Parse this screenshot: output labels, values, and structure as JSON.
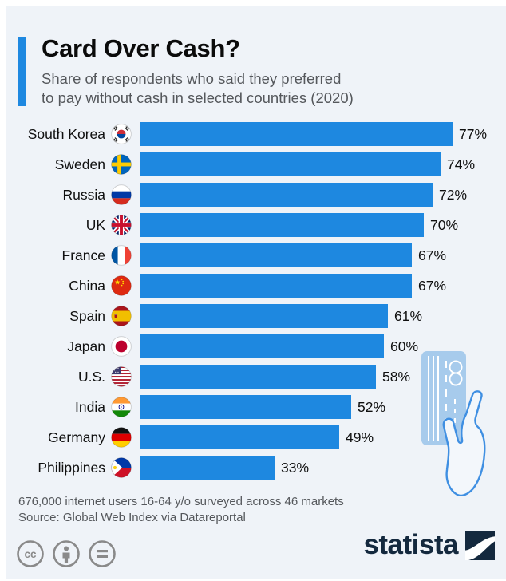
{
  "header": {
    "title": "Card Over Cash?",
    "subtitle_line1": "Share of respondents who said they preferred",
    "subtitle_line2": "to pay without cash in selected countries (2020)",
    "accent_color": "#1e88e0"
  },
  "chart_data": {
    "type": "bar",
    "orientation": "horizontal",
    "title": "Card Over Cash?",
    "subtitle": "Share of respondents who said they preferred to pay without cash in selected countries (2020)",
    "categories": [
      "South Korea",
      "Sweden",
      "Russia",
      "UK",
      "France",
      "China",
      "Spain",
      "Japan",
      "U.S.",
      "India",
      "Germany",
      "Philippines"
    ],
    "values": [
      77,
      74,
      72,
      70,
      67,
      67,
      61,
      60,
      58,
      52,
      49,
      33
    ],
    "value_suffix": "%",
    "xlim": [
      0,
      80
    ],
    "grid": false,
    "bar_color": "#1e88e0",
    "rows": [
      {
        "country": "South Korea",
        "value": 77,
        "value_label": "77%",
        "flag_code": "kr",
        "flag_icon": "flag-south-korea-icon"
      },
      {
        "country": "Sweden",
        "value": 74,
        "value_label": "74%",
        "flag_code": "se",
        "flag_icon": "flag-sweden-icon"
      },
      {
        "country": "Russia",
        "value": 72,
        "value_label": "72%",
        "flag_code": "ru",
        "flag_icon": "flag-russia-icon"
      },
      {
        "country": "UK",
        "value": 70,
        "value_label": "70%",
        "flag_code": "gb",
        "flag_icon": "flag-uk-icon"
      },
      {
        "country": "France",
        "value": 67,
        "value_label": "67%",
        "flag_code": "fr",
        "flag_icon": "flag-france-icon"
      },
      {
        "country": "China",
        "value": 67,
        "value_label": "67%",
        "flag_code": "cn",
        "flag_icon": "flag-china-icon"
      },
      {
        "country": "Spain",
        "value": 61,
        "value_label": "61%",
        "flag_code": "es",
        "flag_icon": "flag-spain-icon"
      },
      {
        "country": "Japan",
        "value": 60,
        "value_label": "60%",
        "flag_code": "jp",
        "flag_icon": "flag-japan-icon"
      },
      {
        "country": "U.S.",
        "value": 58,
        "value_label": "58%",
        "flag_code": "us",
        "flag_icon": "flag-us-icon"
      },
      {
        "country": "India",
        "value": 52,
        "value_label": "52%",
        "flag_code": "in",
        "flag_icon": "flag-india-icon"
      },
      {
        "country": "Germany",
        "value": 49,
        "value_label": "49%",
        "flag_code": "de",
        "flag_icon": "flag-germany-icon"
      },
      {
        "country": "Philippines",
        "value": 33,
        "value_label": "33%",
        "flag_code": "ph",
        "flag_icon": "flag-philippines-icon"
      }
    ]
  },
  "illustration": {
    "name": "hand-holding-credit-card",
    "card_fill": "#a7cbec",
    "hand_stroke": "#3f8fe2",
    "hand_fill": "#f3f7fb"
  },
  "footer": {
    "note_line1": "676,000 internet users 16-64 y/o surveyed across 46 markets",
    "note_line2": "Source: Global Web Index via Datareportal",
    "license_icons": [
      "cc-icon",
      "cc-attribution-icon",
      "cc-equal-icon"
    ],
    "brand": "statista",
    "brand_color": "#14293e"
  },
  "colors": {
    "panel_background": "#eff3f8",
    "page_background": "#ffffff",
    "text_dark": "#101010",
    "text_gray": "#55585c"
  }
}
